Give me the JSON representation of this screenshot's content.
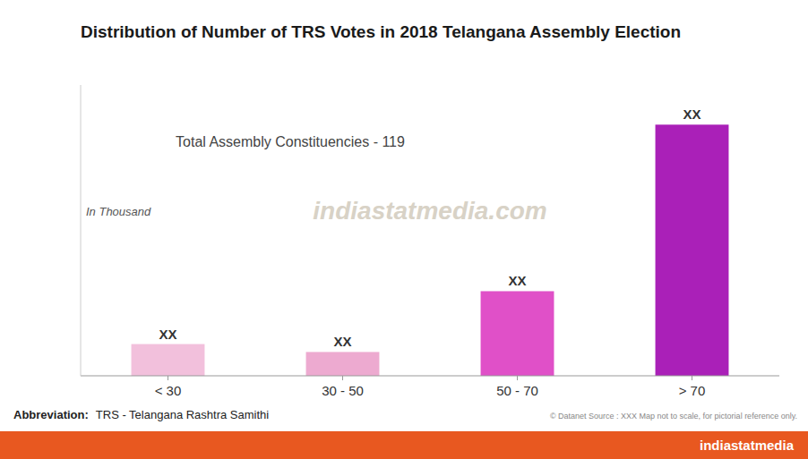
{
  "chart_data": {
    "type": "bar",
    "title": "Distribution of Number of TRS Votes in 2018 Telangana Assembly Election",
    "subtitle": "Total Assembly Constituencies - 119",
    "y_label": "In Thousand",
    "categories": [
      "< 30",
      "30 - 50",
      "50 - 70",
      "> 70"
    ],
    "values": [
      1.2,
      0.9,
      3.2,
      9.5
    ],
    "value_labels": [
      "XX",
      "XX",
      "XX",
      "XX"
    ],
    "data_labels": true,
    "colors": [
      "#f2c0dc",
      "#edaad0",
      "#e050c8",
      "#aa20b8"
    ],
    "ylim": [
      0,
      11.0
    ],
    "tick_labels": "x",
    "grid": false,
    "annotations": [
      "indiastatmedia.com",
      "Abbreviation:",
      "TRS - Telangana Rashtra Samithi",
      "© Datanet   Source : XXX   Map not to scale, for pictorial reference only.",
      "indiastatmedia"
    ]
  }
}
